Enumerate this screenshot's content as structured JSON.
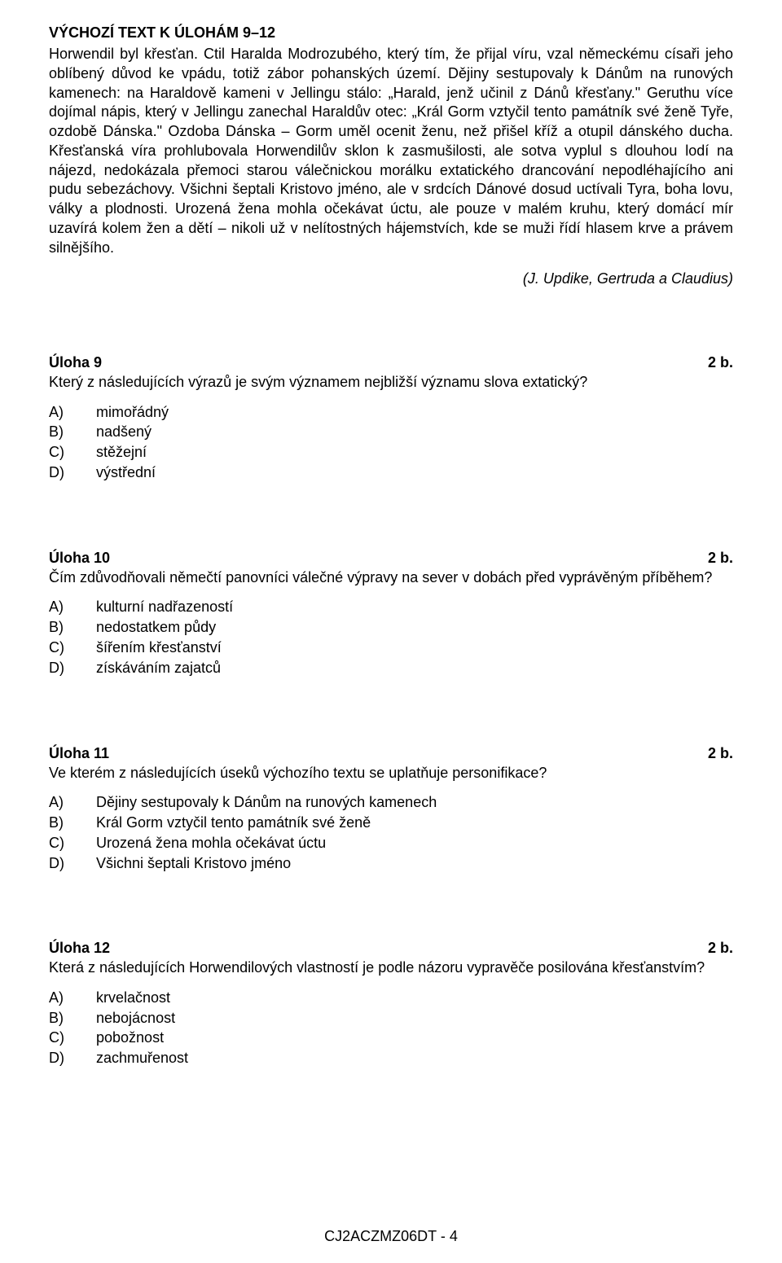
{
  "source": {
    "heading": "VÝCHOZÍ TEXT K ÚLOHÁM 9–12",
    "body": "Horwendil byl křesťan. Ctil Haralda Modrozubého, který tím, že přijal víru, vzal německému císaři jeho oblíbený důvod ke vpádu, totiž zábor pohanských území. Dějiny sestupovaly k Dánům na runových kamenech: na Haraldově kameni v Jellingu stálo: „Harald, jenž učinil z Dánů křesťany.\" Geruthu více dojímal nápis, který v Jellingu zanechal Haraldův otec: „Král Gorm vztyčil tento památník své ženě Tyře, ozdobě Dánska.\" Ozdoba Dánska – Gorm uměl ocenit ženu, než přišel kříž a otupil dánského ducha. Křesťanská víra prohlubovala Horwendilův sklon k zasmušilosti, ale sotva vyplul s dlouhou lodí na nájezd, nedokázala přemoci starou válečnickou morálku extatického drancování nepodléhajícího ani pudu sebezáchovy. Všichni šeptali Kristovo jméno, ale v srdcích Dánové dosud uctívali Tyra, boha lovu, války a plodnosti. Urozená žena mohla očekávat úctu, ale pouze v malém kruhu, který domácí mír uzavírá kolem žen a dětí – nikoli už v nelítostných hájemstvích, kde se muži řídí hlasem krve a právem silnějšího.",
    "citation": "(J. Updike, Gertruda a Claudius)"
  },
  "tasks": [
    {
      "title": "Úloha 9",
      "points": "2 b.",
      "question": "Který z následujících výrazů je svým významem nejbližší významu slova extatický?",
      "options": [
        {
          "letter": "A)",
          "text": "mimořádný"
        },
        {
          "letter": "B)",
          "text": "nadšený"
        },
        {
          "letter": "C)",
          "text": "stěžejní"
        },
        {
          "letter": "D)",
          "text": "výstřední"
        }
      ]
    },
    {
      "title": "Úloha 10",
      "points": "2 b.",
      "question": "Čím zdůvodňovali němečtí panovníci válečné výpravy na sever v dobách před vyprávěným příběhem?",
      "options": [
        {
          "letter": "A)",
          "text": "kulturní nadřazeností"
        },
        {
          "letter": "B)",
          "text": "nedostatkem půdy"
        },
        {
          "letter": "C)",
          "text": "šířením křesťanství"
        },
        {
          "letter": "D)",
          "text": "získáváním zajatců"
        }
      ]
    },
    {
      "title": "Úloha 11",
      "points": "2 b.",
      "question": "Ve kterém z následujících úseků výchozího textu se uplatňuje personifikace?",
      "options": [
        {
          "letter": "A)",
          "text": "Dějiny sestupovaly k Dánům na runových kamenech"
        },
        {
          "letter": "B)",
          "text": "Král Gorm vztyčil tento památník své ženě"
        },
        {
          "letter": "C)",
          "text": "Urozená žena mohla očekávat úctu"
        },
        {
          "letter": "D)",
          "text": "Všichni šeptali Kristovo jméno"
        }
      ]
    },
    {
      "title": "Úloha 12",
      "points": "2 b.",
      "question": "Která z následujících Horwendilových vlastností je podle názoru vypravěče posilována křesťanstvím?",
      "options": [
        {
          "letter": "A)",
          "text": "krvelačnost"
        },
        {
          "letter": "B)",
          "text": "nebojácnost"
        },
        {
          "letter": "C)",
          "text": "pobožnost"
        },
        {
          "letter": "D)",
          "text": "zachmuřenost"
        }
      ]
    }
  ],
  "footer": "CJ2ACZMZ06DT - 4"
}
